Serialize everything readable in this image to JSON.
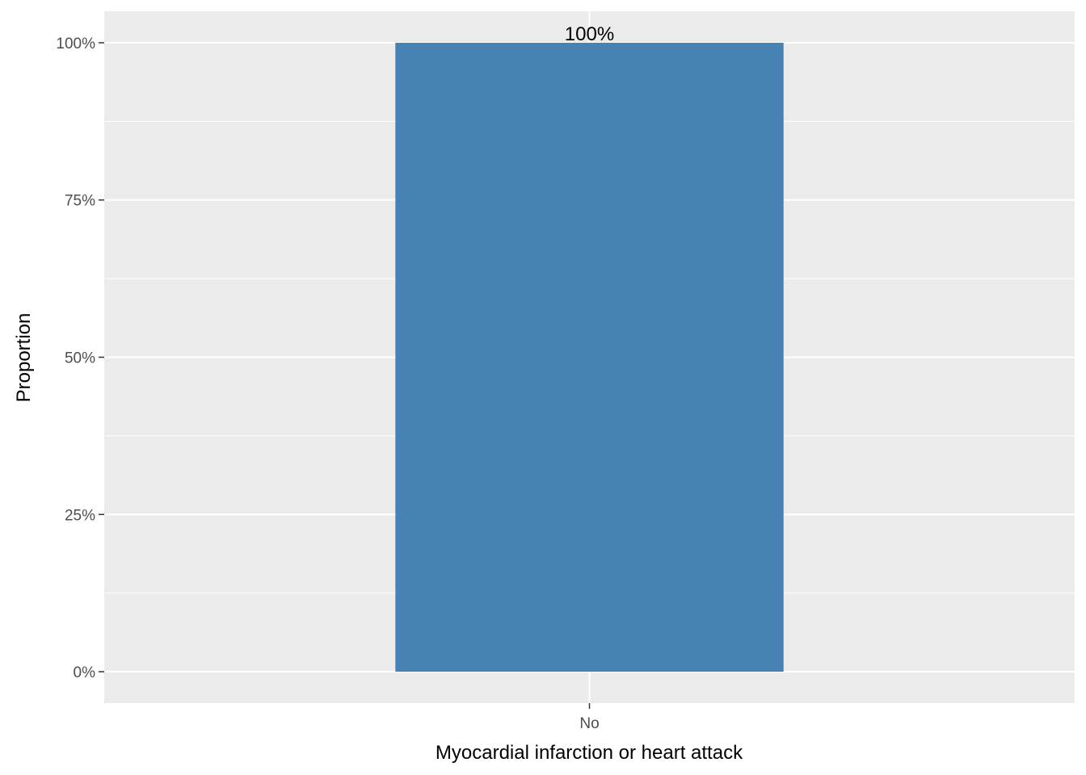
{
  "chart_data": {
    "type": "bar",
    "categories": [
      "No"
    ],
    "values": [
      1.0
    ],
    "data_labels": [
      "100%"
    ],
    "title": "",
    "xlabel": "Myocardial infarction or heart attack",
    "ylabel": "Proportion",
    "ylim": [
      -0.05,
      1.05
    ],
    "yticks": [
      0,
      0.25,
      0.5,
      0.75,
      1.0
    ],
    "ytick_labels": [
      "0%",
      "25%",
      "50%",
      "75%",
      "100%"
    ],
    "grid": true,
    "legend": "none",
    "colors": {
      "bar": "#4682B4",
      "panel": "#EBEBEB",
      "grid": "#FFFFFF",
      "tick_text": "#4D4D4D",
      "tick_mark": "#333333"
    }
  }
}
